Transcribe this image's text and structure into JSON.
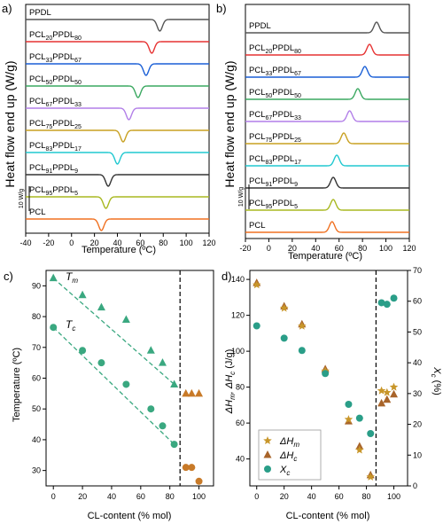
{
  "figure": {
    "panel_a": {
      "letter": "a)",
      "ylabel": "Heat flow end up (W/g)",
      "xlabel": "Temperature (ºC)",
      "xticks": [
        -40,
        -20,
        0,
        20,
        40,
        60,
        80,
        100,
        120
      ],
      "scalebar": "10 W/g"
    },
    "panel_b": {
      "letter": "b)",
      "ylabel": "Heat flow end up (W/g)",
      "xlabel": "Temperature (ºC)",
      "xticks": [
        -20,
        0,
        20,
        40,
        60,
        80,
        100,
        120
      ],
      "scalebar": "10 W/g"
    },
    "panel_c": {
      "letter": "c)",
      "ylabel": "Temperature (ºC)",
      "xlabel": "CL-content (% mol)",
      "tm_label": "T",
      "tm_sub": "m",
      "tc_label": "T",
      "tc_sub": "c"
    },
    "panel_d": {
      "letter": "d)",
      "ylabel_left_main": "ΔH",
      "ylabel_left_sub1": "m",
      "ylabel_left_mid": ", ΔH",
      "ylabel_left_sub2": "c",
      "ylabel_left_unit": " (J/g)",
      "ylabel_right_main": "X",
      "ylabel_right_sub": "c",
      "ylabel_right_unit": " (%)",
      "xlabel": "CL-content (% mol)",
      "legend": [
        {
          "main": "ΔH",
          "sub": "m"
        },
        {
          "main": "ΔH",
          "sub": "c"
        },
        {
          "main": "X",
          "sub": "c"
        }
      ]
    }
  },
  "chart_data": [
    {
      "type": "line",
      "panel": "a",
      "xlim": [
        -40,
        120
      ],
      "xlabel": "Temperature (ºC)",
      "ylabel": "Heat flow end up (W/g)",
      "series": [
        {
          "name": "PPDL",
          "name_html": [
            "PPDL"
          ],
          "color": "#555555",
          "peak_T": 77,
          "direction": "down"
        },
        {
          "name": "PCL20PPDL80",
          "name_html": [
            "PCL",
            "20",
            "PPDL",
            "80"
          ],
          "color": "#e63232",
          "peak_T": 70,
          "direction": "down"
        },
        {
          "name": "PCL33PPDL67",
          "name_html": [
            "PCL",
            "33",
            "PPDL",
            "67"
          ],
          "color": "#1a5fd6",
          "peak_T": 65,
          "direction": "down"
        },
        {
          "name": "PCL50PPDL50",
          "name_html": [
            "PCL",
            "50",
            "PPDL",
            "50"
          ],
          "color": "#3aa860",
          "peak_T": 58,
          "direction": "down"
        },
        {
          "name": "PCL67PPDL33",
          "name_html": [
            "PCL",
            "67",
            "PPDL",
            "33"
          ],
          "color": "#b27fe8",
          "peak_T": 50,
          "direction": "down"
        },
        {
          "name": "PCL75PPDL25",
          "name_html": [
            "PCL",
            "75",
            "PPDL",
            "25"
          ],
          "color": "#c8a020",
          "peak_T": 45,
          "direction": "down"
        },
        {
          "name": "PCL83PPDL17",
          "name_html": [
            "PCL",
            "83",
            "PPDL",
            "17"
          ],
          "color": "#20c8d0",
          "peak_T": 40,
          "direction": "down"
        },
        {
          "name": "PCL91PPDL9",
          "name_html": [
            "PCL",
            "91",
            "PPDL",
            "9"
          ],
          "color": "#333333",
          "peak_T": 32,
          "direction": "down"
        },
        {
          "name": "PCL95PPDL5",
          "name_html": [
            "PCL",
            "95",
            "PPDL",
            "5"
          ],
          "color": "#a8b820",
          "peak_T": 30,
          "direction": "down"
        },
        {
          "name": "PCL",
          "name_html": [
            "PCL"
          ],
          "color": "#f07020",
          "peak_T": 26,
          "direction": "down"
        }
      ]
    },
    {
      "type": "line",
      "panel": "b",
      "xlim": [
        -20,
        120
      ],
      "xlabel": "Temperature (ºC)",
      "ylabel": "Heat flow end up (W/g)",
      "series": [
        {
          "name": "PPDL",
          "name_html": [
            "PPDL"
          ],
          "color": "#555555",
          "peak_T": 92,
          "direction": "up"
        },
        {
          "name": "PCL20PPDL80",
          "name_html": [
            "PCL",
            "20",
            "PPDL",
            "80"
          ],
          "color": "#e63232",
          "peak_T": 86,
          "direction": "up"
        },
        {
          "name": "PCL33PPDL67",
          "name_html": [
            "PCL",
            "33",
            "PPDL",
            "67"
          ],
          "color": "#1a5fd6",
          "peak_T": 82,
          "direction": "up"
        },
        {
          "name": "PCL50PPDL50",
          "name_html": [
            "PCL",
            "50",
            "PPDL",
            "50"
          ],
          "color": "#3aa860",
          "peak_T": 76,
          "direction": "up"
        },
        {
          "name": "PCL67PPDL33",
          "name_html": [
            "PCL",
            "67",
            "PPDL",
            "33"
          ],
          "color": "#b27fe8",
          "peak_T": 69,
          "direction": "up"
        },
        {
          "name": "PCL75PPDL25",
          "name_html": [
            "PCL",
            "75",
            "PPDL",
            "25"
          ],
          "color": "#c8a020",
          "peak_T": 64,
          "direction": "up"
        },
        {
          "name": "PCL83PPDL17",
          "name_html": [
            "PCL",
            "83",
            "PPDL",
            "17"
          ],
          "color": "#20c8d0",
          "peak_T": 58,
          "direction": "up"
        },
        {
          "name": "PCL91PPDL9",
          "name_html": [
            "PCL",
            "91",
            "PPDL",
            "9"
          ],
          "color": "#333333",
          "peak_T": 55,
          "direction": "up"
        },
        {
          "name": "PCL95PPDL5",
          "name_html": [
            "PCL",
            "95",
            "PPDL",
            "5"
          ],
          "color": "#a8b820",
          "peak_T": 55,
          "direction": "up"
        },
        {
          "name": "PCL",
          "name_html": [
            "PCL"
          ],
          "color": "#f07020",
          "peak_T": 54,
          "direction": "up"
        }
      ]
    },
    {
      "type": "scatter",
      "panel": "c",
      "xlim": [
        -5,
        110
      ],
      "ylim": [
        25,
        95
      ],
      "xticks": [
        0,
        20,
        40,
        60,
        80,
        100
      ],
      "yticks": [
        30,
        40,
        50,
        60,
        70,
        80,
        90
      ],
      "xlabel": "CL-content (% mol)",
      "ylabel": "Temperature (ºC)",
      "vline_x": 87,
      "series": [
        {
          "name": "Tm",
          "marker": "triangle",
          "color": "#3aa880",
          "x": [
            0,
            20,
            33,
            50,
            67,
            75,
            83
          ],
          "y": [
            92.5,
            87,
            83,
            79,
            69,
            65,
            58
          ]
        },
        {
          "name": "Tm2",
          "marker": "triangle",
          "color": "#c87a28",
          "x": [
            91,
            95,
            100
          ],
          "y": [
            55,
            55,
            55
          ]
        },
        {
          "name": "Tc",
          "marker": "circle",
          "color": "#3aa880",
          "x": [
            0,
            20,
            33,
            50,
            67,
            75,
            83
          ],
          "y": [
            76.5,
            69,
            65,
            58,
            50,
            44.5,
            38.5
          ]
        },
        {
          "name": "Tc2",
          "marker": "circle",
          "color": "#c87a28",
          "x": [
            91,
            95,
            100
          ],
          "y": [
            31,
            31,
            26.5
          ]
        }
      ],
      "trendlines": [
        {
          "series": "Tm",
          "x": [
            0,
            83
          ],
          "y": [
            92.5,
            58
          ]
        },
        {
          "series": "Tc",
          "x": [
            0,
            83
          ],
          "y": [
            76.5,
            38.5
          ]
        }
      ]
    },
    {
      "type": "scatter",
      "panel": "d",
      "xlim": [
        -5,
        110
      ],
      "ylim": [
        25,
        145
      ],
      "y2lim": [
        0,
        70
      ],
      "xticks": [
        0,
        20,
        40,
        60,
        80,
        100
      ],
      "yticks": [
        40,
        60,
        80,
        100,
        120,
        140
      ],
      "y2ticks": [
        0,
        10,
        20,
        30,
        40,
        50,
        60,
        70
      ],
      "xlabel": "CL-content (% mol)",
      "vline_x": 87,
      "series": [
        {
          "name": "ΔHm",
          "marker": "star",
          "axis": "left",
          "color": "#c8962a",
          "x": [
            0,
            20,
            33,
            50,
            67,
            75,
            83,
            91,
            95,
            100
          ],
          "y": [
            137,
            124,
            114,
            89,
            62,
            45,
            30,
            78,
            77,
            80
          ]
        },
        {
          "name": "ΔHc",
          "marker": "triangle",
          "axis": "left",
          "color": "#a8642a",
          "x": [
            0,
            20,
            33,
            50,
            67,
            75,
            83,
            91,
            95,
            100
          ],
          "y": [
            138,
            125,
            115,
            90,
            61,
            47,
            31,
            71,
            73,
            76
          ]
        },
        {
          "name": "Xc",
          "marker": "circle",
          "axis": "right",
          "color": "#2a9e88",
          "x": [
            0,
            20,
            33,
            50,
            67,
            75,
            83,
            91,
            95,
            100
          ],
          "y": [
            52,
            48,
            44,
            36.5,
            26.5,
            22,
            17,
            59.5,
            59,
            61
          ]
        }
      ]
    }
  ]
}
